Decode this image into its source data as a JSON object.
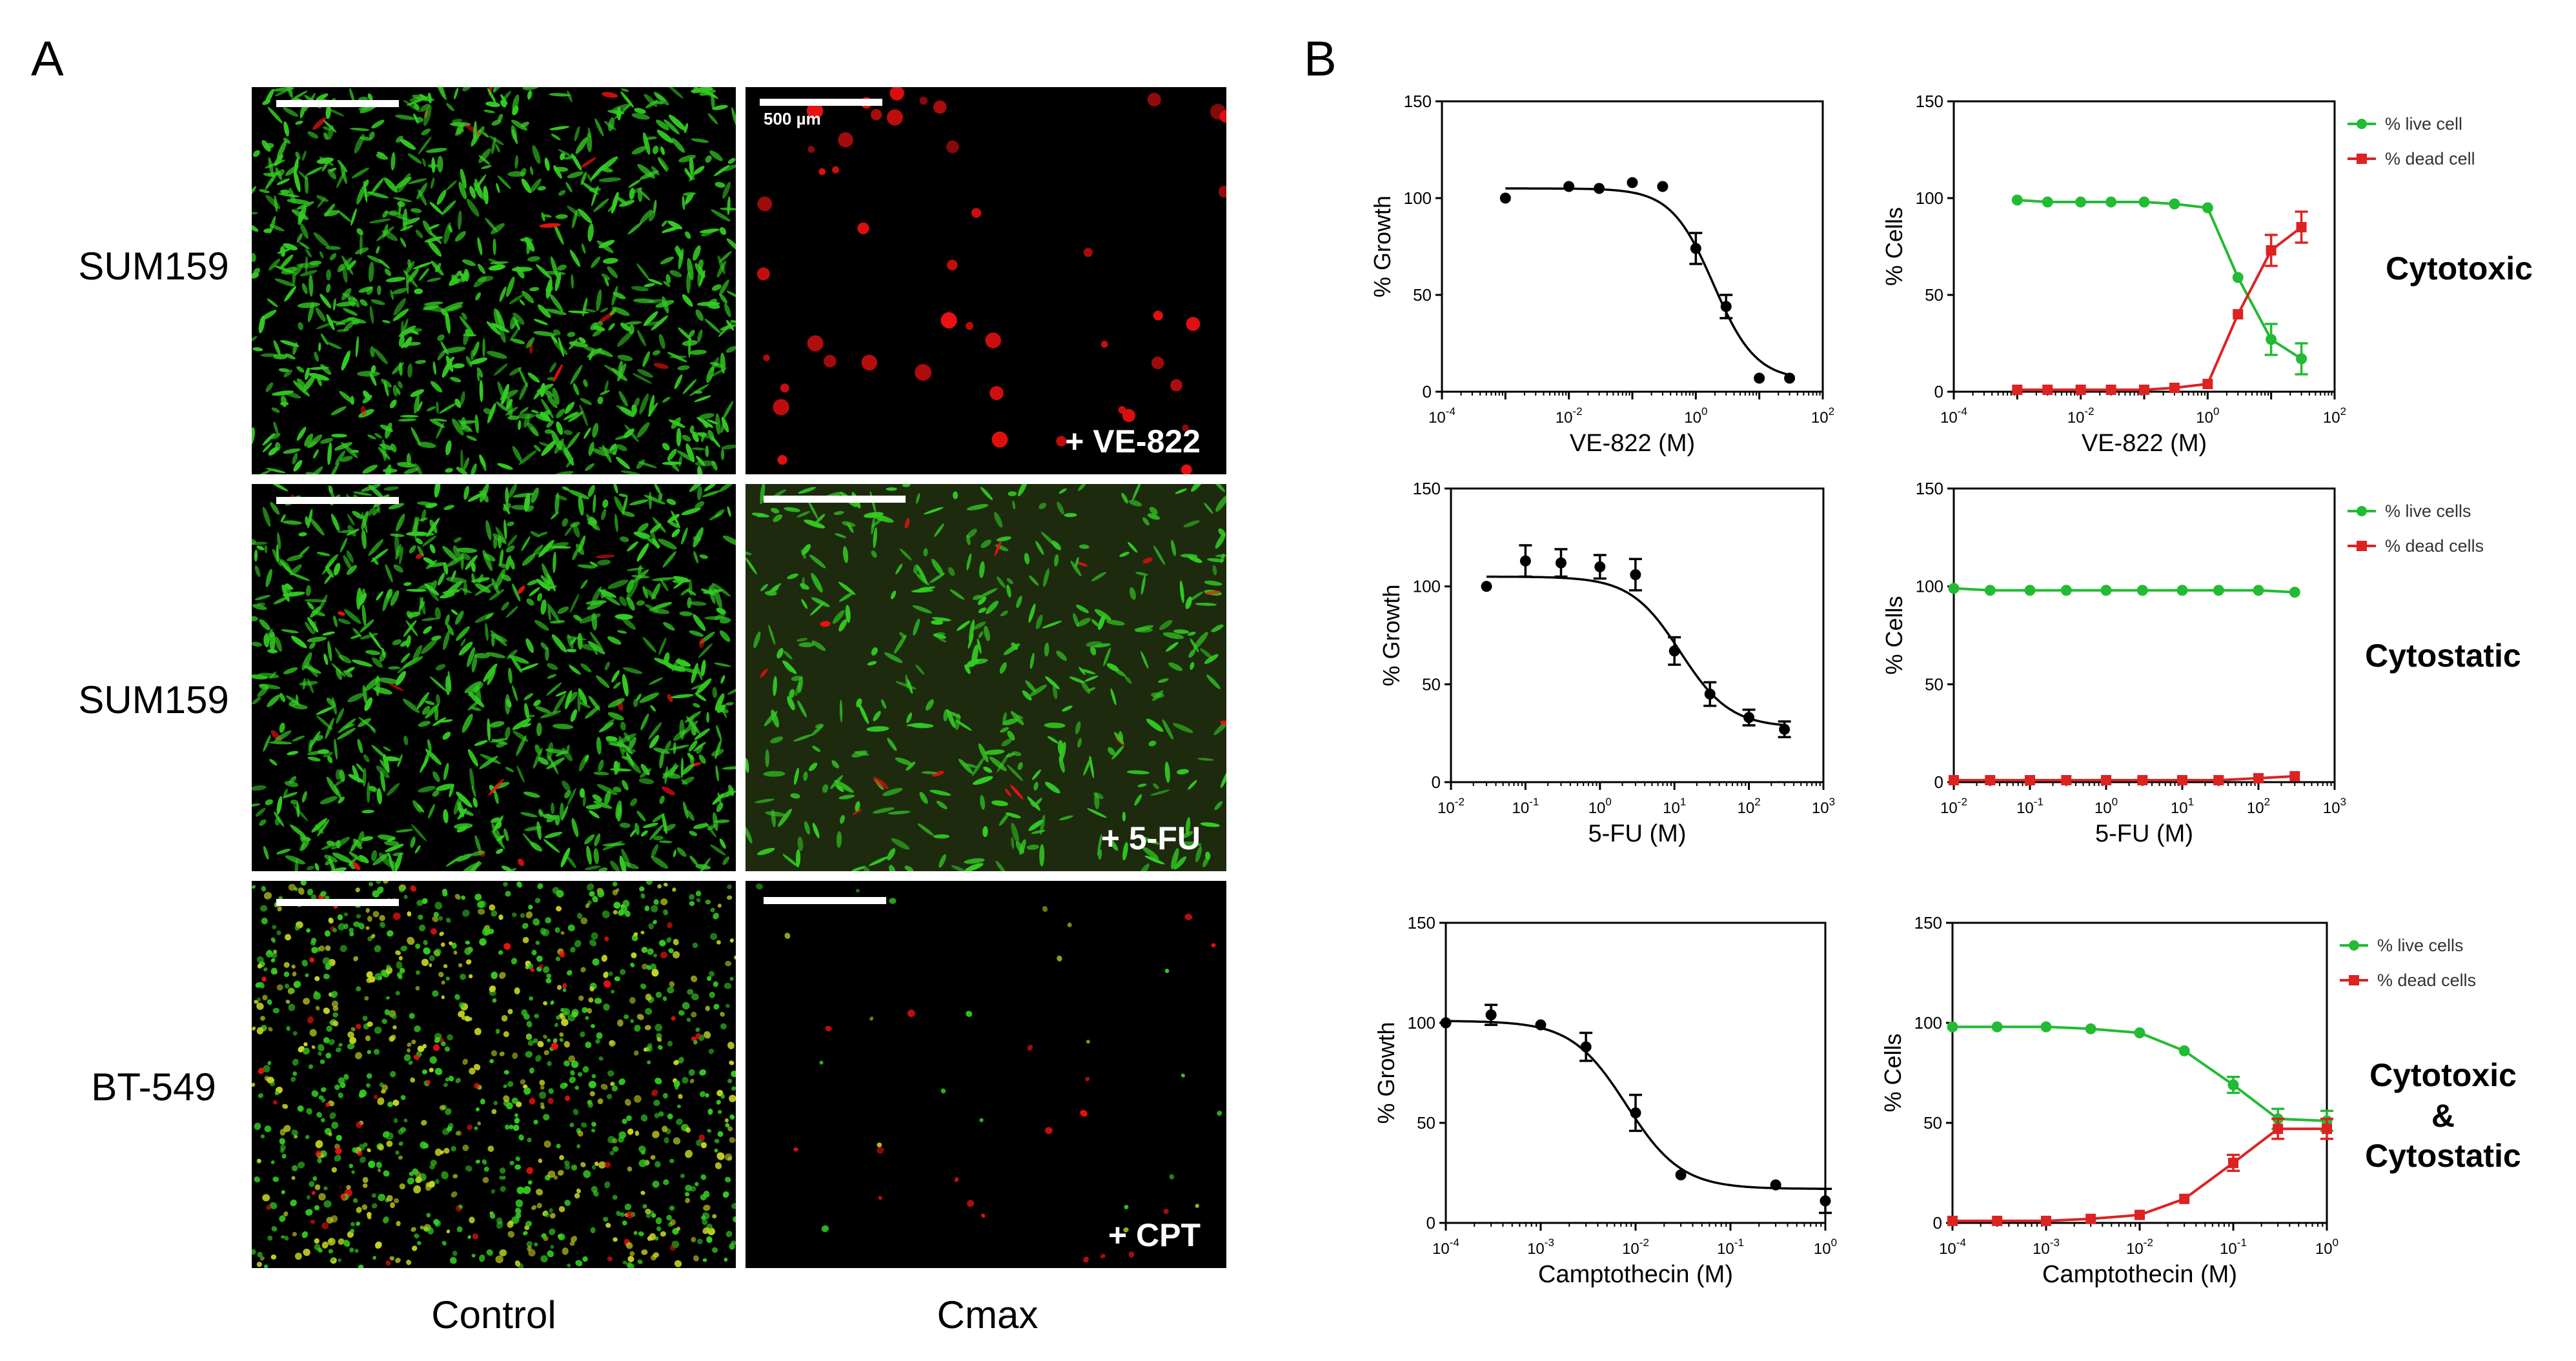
{
  "panels": {
    "a": "A",
    "b": "B"
  },
  "panel_a": {
    "rows": [
      "SUM159",
      "SUM159",
      "BT-549"
    ],
    "columns": [
      "Control",
      "Cmax"
    ],
    "treatments": [
      "+ VE-822",
      "+ 5-FU",
      "+ CPT"
    ],
    "scale_bar_text": "500 µm",
    "colors": {
      "live": "#33cc22",
      "dead": "#ee1111",
      "background": "#000000"
    }
  },
  "categories": [
    "Cytotoxic",
    "Cytostatic",
    "Cytotoxic",
    "&",
    "Cytostatic"
  ],
  "chart_data": [
    {
      "type": "line",
      "xscale": "log",
      "xlim": [
        0.0001,
        100
      ],
      "ylim": [
        0,
        150
      ],
      "xlabel": "VE-822 (M)",
      "ylabel": "% Growth",
      "xticks": [
        "10-4",
        "10-2",
        "100",
        "102"
      ],
      "yticks": [
        "0",
        "50",
        "100",
        "150"
      ],
      "series": [
        {
          "x": [
            0.001,
            0.01,
            0.03,
            0.1,
            0.3,
            1,
            3,
            10,
            30
          ],
          "y": [
            100,
            106,
            105,
            108,
            106,
            74,
            44,
            7,
            7
          ],
          "err": [
            0,
            0,
            0,
            0,
            0,
            8,
            6,
            0,
            0
          ]
        }
      ],
      "fit": {
        "top": 105,
        "bottom": 6,
        "ec50": 1.9,
        "hill": 1.3
      }
    },
    {
      "type": "line",
      "xscale": "log",
      "xlim": [
        0.0001,
        100
      ],
      "ylim": [
        0,
        150
      ],
      "xlabel": "VE-822 (M)",
      "ylabel": "% Cells",
      "xticks": [
        "10-4",
        "10-2",
        "100",
        "102"
      ],
      "yticks": [
        "0",
        "50",
        "100",
        "150"
      ],
      "legend": "top-right",
      "series": [
        {
          "name": "% live cell",
          "color": "#22bb33",
          "x": [
            0.001,
            0.003,
            0.01,
            0.03,
            0.1,
            0.3,
            1,
            3,
            10,
            30
          ],
          "y": [
            99,
            98,
            98,
            98,
            98,
            97,
            95,
            59,
            27,
            17
          ],
          "err": [
            0,
            0,
            0,
            0,
            0,
            0,
            0,
            0,
            8,
            8
          ]
        },
        {
          "name": "% dead cell",
          "color": "#dd2222",
          "x": [
            0.001,
            0.003,
            0.01,
            0.03,
            0.1,
            0.3,
            1,
            3,
            10,
            30
          ],
          "y": [
            1,
            1,
            1,
            1,
            1,
            2,
            4,
            40,
            73,
            85
          ],
          "err": [
            0,
            0,
            0,
            0,
            0,
            0,
            0,
            0,
            8,
            8
          ]
        }
      ]
    },
    {
      "type": "line",
      "xscale": "log",
      "xlim": [
        0.01,
        1000
      ],
      "ylim": [
        0,
        150
      ],
      "xlabel": "5-FU (M)",
      "ylabel": "% Growth",
      "xticks": [
        "10-2",
        "10-1",
        "100",
        "101",
        "102",
        "103"
      ],
      "yticks": [
        "0",
        "50",
        "100",
        "150"
      ],
      "series": [
        {
          "x": [
            0.03,
            0.1,
            0.3,
            1,
            3,
            10,
            30,
            100,
            300
          ],
          "y": [
            100,
            113,
            112,
            110,
            106,
            67,
            45,
            33,
            27
          ],
          "err": [
            0,
            8,
            7,
            6,
            8,
            7,
            6,
            4,
            4
          ]
        }
      ],
      "fit": {
        "top": 105,
        "bottom": 28,
        "ec50": 12,
        "hill": 1.3
      }
    },
    {
      "type": "line",
      "xscale": "log",
      "xlim": [
        0.01,
        1000
      ],
      "ylim": [
        0,
        150
      ],
      "xlabel": "5-FU (M)",
      "ylabel": "% Cells",
      "xticks": [
        "10-2",
        "10-1",
        "100",
        "101",
        "102",
        "103"
      ],
      "yticks": [
        "0",
        "50",
        "100",
        "150"
      ],
      "legend": "top-right",
      "series": [
        {
          "name": "% live cells",
          "color": "#22bb33",
          "x": [
            0.01,
            0.03,
            0.1,
            0.3,
            1,
            3,
            10,
            30,
            100,
            300
          ],
          "y": [
            99,
            98,
            98,
            98,
            98,
            98,
            98,
            98,
            98,
            97
          ],
          "err": [
            0,
            0,
            0,
            0,
            0,
            0,
            0,
            0,
            0,
            0
          ]
        },
        {
          "name": "% dead cells",
          "color": "#dd2222",
          "x": [
            0.01,
            0.03,
            0.1,
            0.3,
            1,
            3,
            10,
            30,
            100,
            300
          ],
          "y": [
            1,
            1,
            1,
            1,
            1,
            1,
            1,
            1,
            2,
            3
          ],
          "err": [
            0,
            0,
            0,
            0,
            0,
            0,
            0,
            0,
            0,
            0
          ]
        }
      ]
    },
    {
      "type": "line",
      "xscale": "log",
      "xlim": [
        0.0001,
        1
      ],
      "ylim": [
        0,
        150
      ],
      "xlabel": "Camptothecin (M)",
      "ylabel": "% Growth",
      "xticks": [
        "10-4",
        "10-3",
        "10-2",
        "10-1",
        "100"
      ],
      "yticks": [
        "0",
        "50",
        "100",
        "150"
      ],
      "series": [
        {
          "x": [
            0.0001,
            0.0003,
            0.001,
            0.003,
            0.01,
            0.03,
            0.3,
            1
          ],
          "y": [
            100,
            104,
            99,
            88,
            55,
            24,
            19,
            11
          ],
          "err": [
            0,
            5,
            0,
            7,
            9,
            0,
            0,
            6
          ]
        }
      ],
      "fit": {
        "top": 101,
        "bottom": 17,
        "ec50": 0.008,
        "hill": 1.5
      }
    },
    {
      "type": "line",
      "xscale": "log",
      "xlim": [
        0.0001,
        1
      ],
      "ylim": [
        0,
        150
      ],
      "xlabel": "Camptothecin (M)",
      "ylabel": "% Cells",
      "xticks": [
        "10-4",
        "10-3",
        "10-2",
        "10-1",
        "100"
      ],
      "yticks": [
        "0",
        "50",
        "100",
        "150"
      ],
      "legend": "top-right",
      "series": [
        {
          "name": "% live cells",
          "color": "#22bb33",
          "x": [
            0.0001,
            0.0003,
            0.001,
            0.003,
            0.01,
            0.03,
            0.1,
            0.3,
            1
          ],
          "y": [
            98,
            98,
            98,
            97,
            95,
            86,
            69,
            52,
            51
          ],
          "err": [
            0,
            0,
            0,
            0,
            0,
            0,
            4,
            5,
            5
          ]
        },
        {
          "name": "% dead cells",
          "color": "#dd2222",
          "x": [
            0.0001,
            0.0003,
            0.001,
            0.003,
            0.01,
            0.03,
            0.1,
            0.3,
            1
          ],
          "y": [
            1,
            1,
            1,
            2,
            4,
            12,
            30,
            47,
            47
          ],
          "err": [
            0,
            0,
            0,
            0,
            0,
            0,
            4,
            5,
            5
          ]
        }
      ]
    }
  ]
}
